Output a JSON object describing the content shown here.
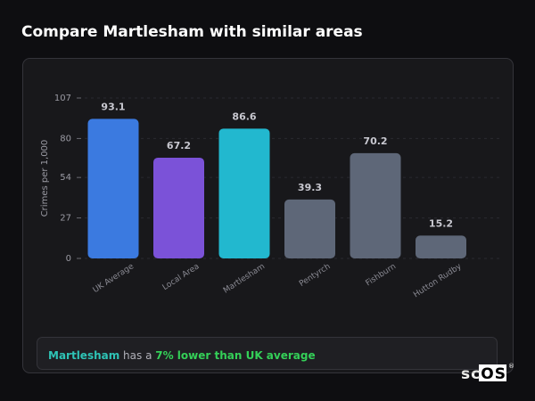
{
  "chart_data": {
    "type": "bar",
    "title": "Compare Martlesham with similar areas",
    "y_label": "Crimes per 1,000",
    "categories": [
      "UK Average",
      "Local Area",
      "Martlesham",
      "Pentyrch",
      "Fishburn",
      "Hutton Rudby"
    ],
    "values": [
      93.1,
      67.2,
      86.6,
      39.3,
      70.2,
      15.2
    ],
    "colors": [
      "#3b7ae0",
      "#7b52d8",
      "#22b8cf",
      "#5e6778",
      "#5e6778",
      "#5e6778"
    ],
    "ylim": [
      0,
      107
    ],
    "yticks": [
      0,
      27,
      54,
      80,
      107
    ],
    "grid": true,
    "insight": {
      "area": "Martlesham",
      "middle": " has a ",
      "highlight": "7% lower than UK average"
    },
    "logo": {
      "text": "scOS",
      "mark": "®"
    }
  }
}
